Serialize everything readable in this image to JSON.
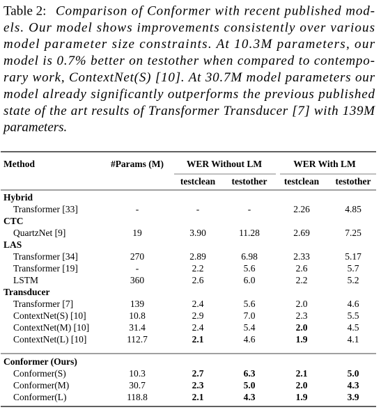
{
  "caption": {
    "label": "Table 2:",
    "lines": [
      "Comparison of Conformer with recent published mod-",
      "els. Our model shows improvements consistently over various",
      "model parameter size constraints. At 10.3M parameters, our",
      "model is 0.7% better on testother when compared to contempo-",
      "rary work, ContextNet(S) [10]. At 30.7M model parameters our",
      "model already significantly outperforms the previous published",
      "state of the art results of Transformer Transducer [7] with 139M",
      "parameters."
    ]
  },
  "table": {
    "columns": [
      "Method",
      "#Params (M)",
      "WER Without LM",
      "WER With LM"
    ],
    "subcolumns": [
      "testclean",
      "testother",
      "testclean",
      "testother"
    ],
    "groups": [
      {
        "name": "Hybrid",
        "rows": [
          {
            "method": "Transformer [33]",
            "cells": [
              "-",
              "-",
              "-",
              "2.26",
              "4.85"
            ]
          }
        ]
      },
      {
        "name": "CTC",
        "rows": [
          {
            "method": "QuartzNet [9]",
            "cells": [
              "19",
              "3.90",
              "11.28",
              "2.69",
              "7.25"
            ]
          }
        ]
      },
      {
        "name": "LAS",
        "rows": [
          {
            "method": "Transformer [34]",
            "cells": [
              "270",
              "2.89",
              "6.98",
              "2.33",
              "5.17"
            ]
          },
          {
            "method": "Transformer [19]",
            "cells": [
              "-",
              "2.2",
              "5.6",
              "2.6",
              "5.7"
            ]
          },
          {
            "method": "LSTM",
            "cells": [
              "360",
              "2.6",
              "6.0",
              "2.2",
              "5.2"
            ]
          }
        ]
      },
      {
        "name": "Transducer",
        "rows": [
          {
            "method": "Transformer [7]",
            "cells": [
              "139",
              "2.4",
              "5.6",
              "2.0",
              "4.6"
            ]
          },
          {
            "method": "ContextNet(S) [10]",
            "cells": [
              "10.8",
              "2.9",
              "7.0",
              "2.3",
              "5.5"
            ]
          },
          {
            "method": "ContextNet(M) [10]",
            "cells": [
              "31.4",
              "2.4",
              "5.4",
              "2.0",
              "4.5"
            ],
            "bold": [
              3
            ]
          },
          {
            "method": "ContextNet(L) [10]",
            "cells": [
              "112.7",
              "2.1",
              "4.6",
              "1.9",
              "4.1"
            ],
            "bold": [
              1,
              3
            ]
          }
        ]
      },
      {
        "name": "Conformer (Ours)",
        "rule_before": true,
        "rows": [
          {
            "method": "Conformer(S)",
            "cells": [
              "10.3",
              "2.7",
              "6.3",
              "2.1",
              "5.0"
            ],
            "bold": [
              1,
              2,
              3,
              4
            ]
          },
          {
            "method": "Conformer(M)",
            "cells": [
              "30.7",
              "2.3",
              "5.0",
              "2.0",
              "4.3"
            ],
            "bold": [
              1,
              2,
              3,
              4
            ]
          },
          {
            "method": "Conformer(L)",
            "cells": [
              "118.8",
              "2.1",
              "4.3",
              "1.9",
              "3.9"
            ],
            "bold": [
              1,
              2,
              3,
              4
            ]
          }
        ]
      }
    ]
  }
}
